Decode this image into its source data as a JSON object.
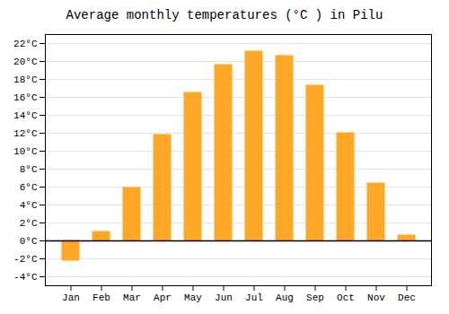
{
  "chart_data": {
    "type": "bar",
    "title": "Average monthly temperatures (°C ) in Pilu",
    "categories": [
      "Jan",
      "Feb",
      "Mar",
      "Apr",
      "May",
      "Jun",
      "Jul",
      "Aug",
      "Sep",
      "Oct",
      "Nov",
      "Dec"
    ],
    "values": [
      -2.2,
      1.0,
      5.9,
      11.8,
      16.5,
      19.6,
      21.1,
      20.6,
      17.3,
      12.0,
      6.4,
      0.6
    ],
    "color": "#FFA726",
    "ylim": [
      -5,
      23
    ],
    "yticks": [
      {
        "value": -4,
        "label": "-4°C"
      },
      {
        "value": -2,
        "label": "-2°C"
      },
      {
        "value": 0,
        "label": "0°C"
      },
      {
        "value": 2,
        "label": "2°C"
      },
      {
        "value": 4,
        "label": "4°C"
      },
      {
        "value": 6,
        "label": "6°C"
      },
      {
        "value": 8,
        "label": "8°C"
      },
      {
        "value": 10,
        "label": "10°C"
      },
      {
        "value": 12,
        "label": "12°C"
      },
      {
        "value": 14,
        "label": "14°C"
      },
      {
        "value": 16,
        "label": "16°C"
      },
      {
        "value": 18,
        "label": "18°C"
      },
      {
        "value": 20,
        "label": "20°C"
      },
      {
        "value": 22,
        "label": "22°C"
      }
    ],
    "grid": true
  }
}
